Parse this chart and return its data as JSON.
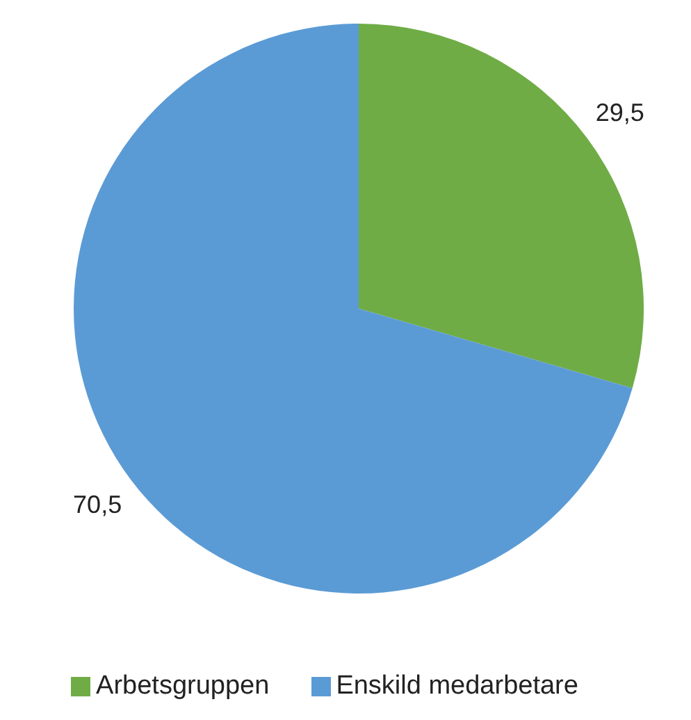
{
  "chart_data": {
    "type": "pie",
    "categories": [
      "Arbetsgruppen",
      "Enskild medarbetare"
    ],
    "values": [
      29.5,
      70.5
    ],
    "colors": [
      "#6fac46",
      "#5b9bd5"
    ],
    "value_labels": [
      "29,5",
      "70,5"
    ],
    "legend": "bottom"
  }
}
